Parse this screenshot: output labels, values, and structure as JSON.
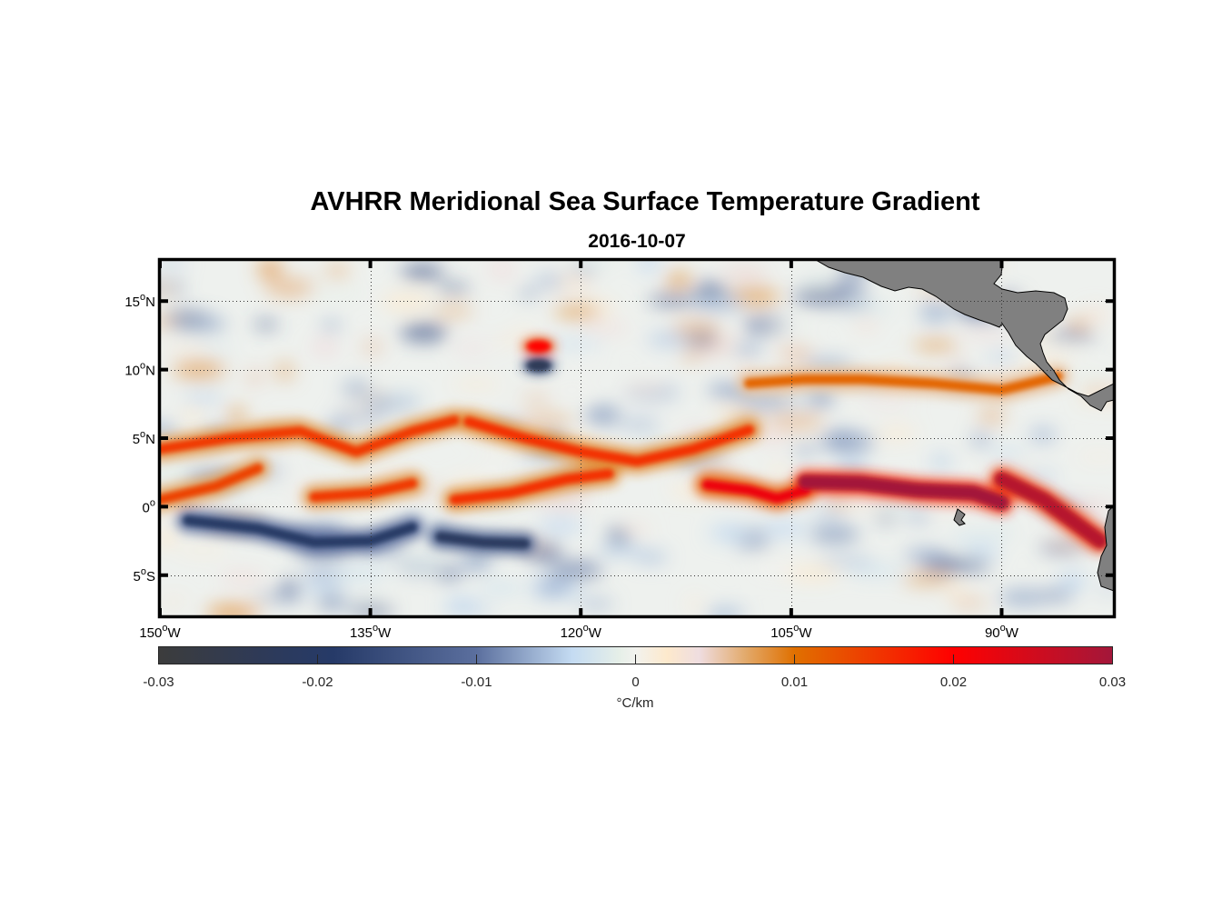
{
  "chart_data": {
    "type": "heatmap",
    "title": "AVHRR Meridional Sea Surface Temperature Gradient",
    "subtitle": "2016-10-07",
    "xlim": [
      -150,
      -82
    ],
    "ylim": [
      -8,
      18
    ],
    "x_ticks": [
      {
        "value": -150,
        "deg": "150",
        "sup": "o",
        "hemi": "W"
      },
      {
        "value": -135,
        "deg": "135",
        "sup": "o",
        "hemi": "W"
      },
      {
        "value": -120,
        "deg": "120",
        "sup": "o",
        "hemi": "W"
      },
      {
        "value": -105,
        "deg": "105",
        "sup": "o",
        "hemi": "W"
      },
      {
        "value": -90,
        "deg": "90",
        "sup": "o",
        "hemi": "W"
      }
    ],
    "y_ticks": [
      {
        "value": 15,
        "deg": "15",
        "sup": "o",
        "hemi": "N"
      },
      {
        "value": 10,
        "deg": "10",
        "sup": "o",
        "hemi": "N"
      },
      {
        "value": 5,
        "deg": "5",
        "sup": "o",
        "hemi": "N"
      },
      {
        "value": 0,
        "deg": "0",
        "sup": "o",
        "hemi": ""
      },
      {
        "value": -5,
        "deg": "5",
        "sup": "o",
        "hemi": "S"
      }
    ],
    "grid": "dotted",
    "colorbar": {
      "location": "bottom",
      "range": [
        -0.03,
        0.03
      ],
      "ticks": [
        "-0.03",
        "-0.02",
        "-0.01",
        "0",
        "0.01",
        "0.02",
        "0.03"
      ],
      "tick_values": [
        -0.03,
        -0.02,
        -0.01,
        0,
        0.01,
        0.02,
        0.03
      ],
      "label": "°C/km",
      "colormap": [
        {
          "v": -0.03,
          "c": "#3c3c3c"
        },
        {
          "v": -0.022,
          "c": "#2b3a5e"
        },
        {
          "v": -0.019,
          "c": "#263a68"
        },
        {
          "v": -0.01,
          "c": "#5b6f9e"
        },
        {
          "v": -0.004,
          "c": "#c4dbf2"
        },
        {
          "v": -0.001,
          "c": "#e6efe8"
        },
        {
          "v": 0,
          "c": "#f2f2ee"
        },
        {
          "v": 0.002,
          "c": "#fde9cc"
        },
        {
          "v": 0.004,
          "c": "#efdde0"
        },
        {
          "v": 0.007,
          "c": "#e2a868"
        },
        {
          "v": 0.01,
          "c": "#e07000"
        },
        {
          "v": 0.02,
          "c": "#ff0000"
        },
        {
          "v": 0.03,
          "c": "#a3173a"
        }
      ]
    },
    "features": [
      {
        "name": "north-equatorial-front-west",
        "lon": [
          -150,
          -145,
          -140,
          -136,
          -132,
          -129
        ],
        "lat": [
          4.2,
          5.0,
          5.5,
          4.0,
          5.5,
          6.3
        ],
        "value": 0.015
      },
      {
        "name": "north-equatorial-front-central",
        "lon": [
          -128,
          -124,
          -120,
          -116,
          -112,
          -108
        ],
        "lat": [
          6.2,
          5.0,
          4.0,
          3.3,
          4.2,
          5.6
        ],
        "value": 0.016
      },
      {
        "name": "equatorial-front-west",
        "lon": [
          -150,
          -146,
          -143
        ],
        "lat": [
          0.5,
          1.5,
          2.8
        ],
        "value": 0.014
      },
      {
        "name": "equatorial-front-west-2",
        "lon": [
          -139,
          -135,
          -132
        ],
        "lat": [
          0.7,
          1.0,
          1.7
        ],
        "value": 0.015
      },
      {
        "name": "equatorial-front-central",
        "lon": [
          -129,
          -125,
          -121,
          -118
        ],
        "lat": [
          0.5,
          1.0,
          2.0,
          2.4
        ],
        "value": 0.016
      },
      {
        "name": "cold-tongue-front-east",
        "lon": [
          -111,
          -108,
          -106,
          -104
        ],
        "lat": [
          1.6,
          1.2,
          0.6,
          1.2
        ],
        "value": 0.022
      },
      {
        "name": "cold-tongue-front-strong",
        "lon": [
          -104,
          -100,
          -96,
          -92,
          -90
        ],
        "lat": [
          1.8,
          1.7,
          1.2,
          1.0,
          0.3
        ],
        "value": 0.03
      },
      {
        "name": "cold-tongue-front-coastal",
        "lon": [
          -90,
          -87,
          -85,
          -83
        ],
        "lat": [
          2.0,
          0.5,
          -1.0,
          -2.5
        ],
        "value": 0.028
      },
      {
        "name": "ncc-front",
        "lon": [
          -108,
          -104,
          -100,
          -95,
          -90,
          -86
        ],
        "lat": [
          9.0,
          9.3,
          9.3,
          9.0,
          8.5,
          9.5
        ],
        "value": 0.011
      },
      {
        "name": "cold-band-south-west",
        "lon": [
          -148,
          -143,
          -139,
          -135,
          -132
        ],
        "lat": [
          -1.0,
          -1.6,
          -2.6,
          -2.5,
          -1.5
        ],
        "value": -0.02
      },
      {
        "name": "cold-band-south-central",
        "lon": [
          -130,
          -127,
          -124
        ],
        "lat": [
          -2.2,
          -2.6,
          -2.7
        ],
        "value": -0.022
      },
      {
        "name": "cold-eddy-north",
        "lon": [
          -123
        ],
        "lat": [
          10.3
        ],
        "value": -0.024
      },
      {
        "name": "warm-eddy-north",
        "lon": [
          -123
        ],
        "lat": [
          11.7
        ],
        "value": 0.02
      }
    ],
    "land": [
      "Central America (Mexico to Panama)",
      "Galapagos Islands",
      "South American coast"
    ]
  }
}
